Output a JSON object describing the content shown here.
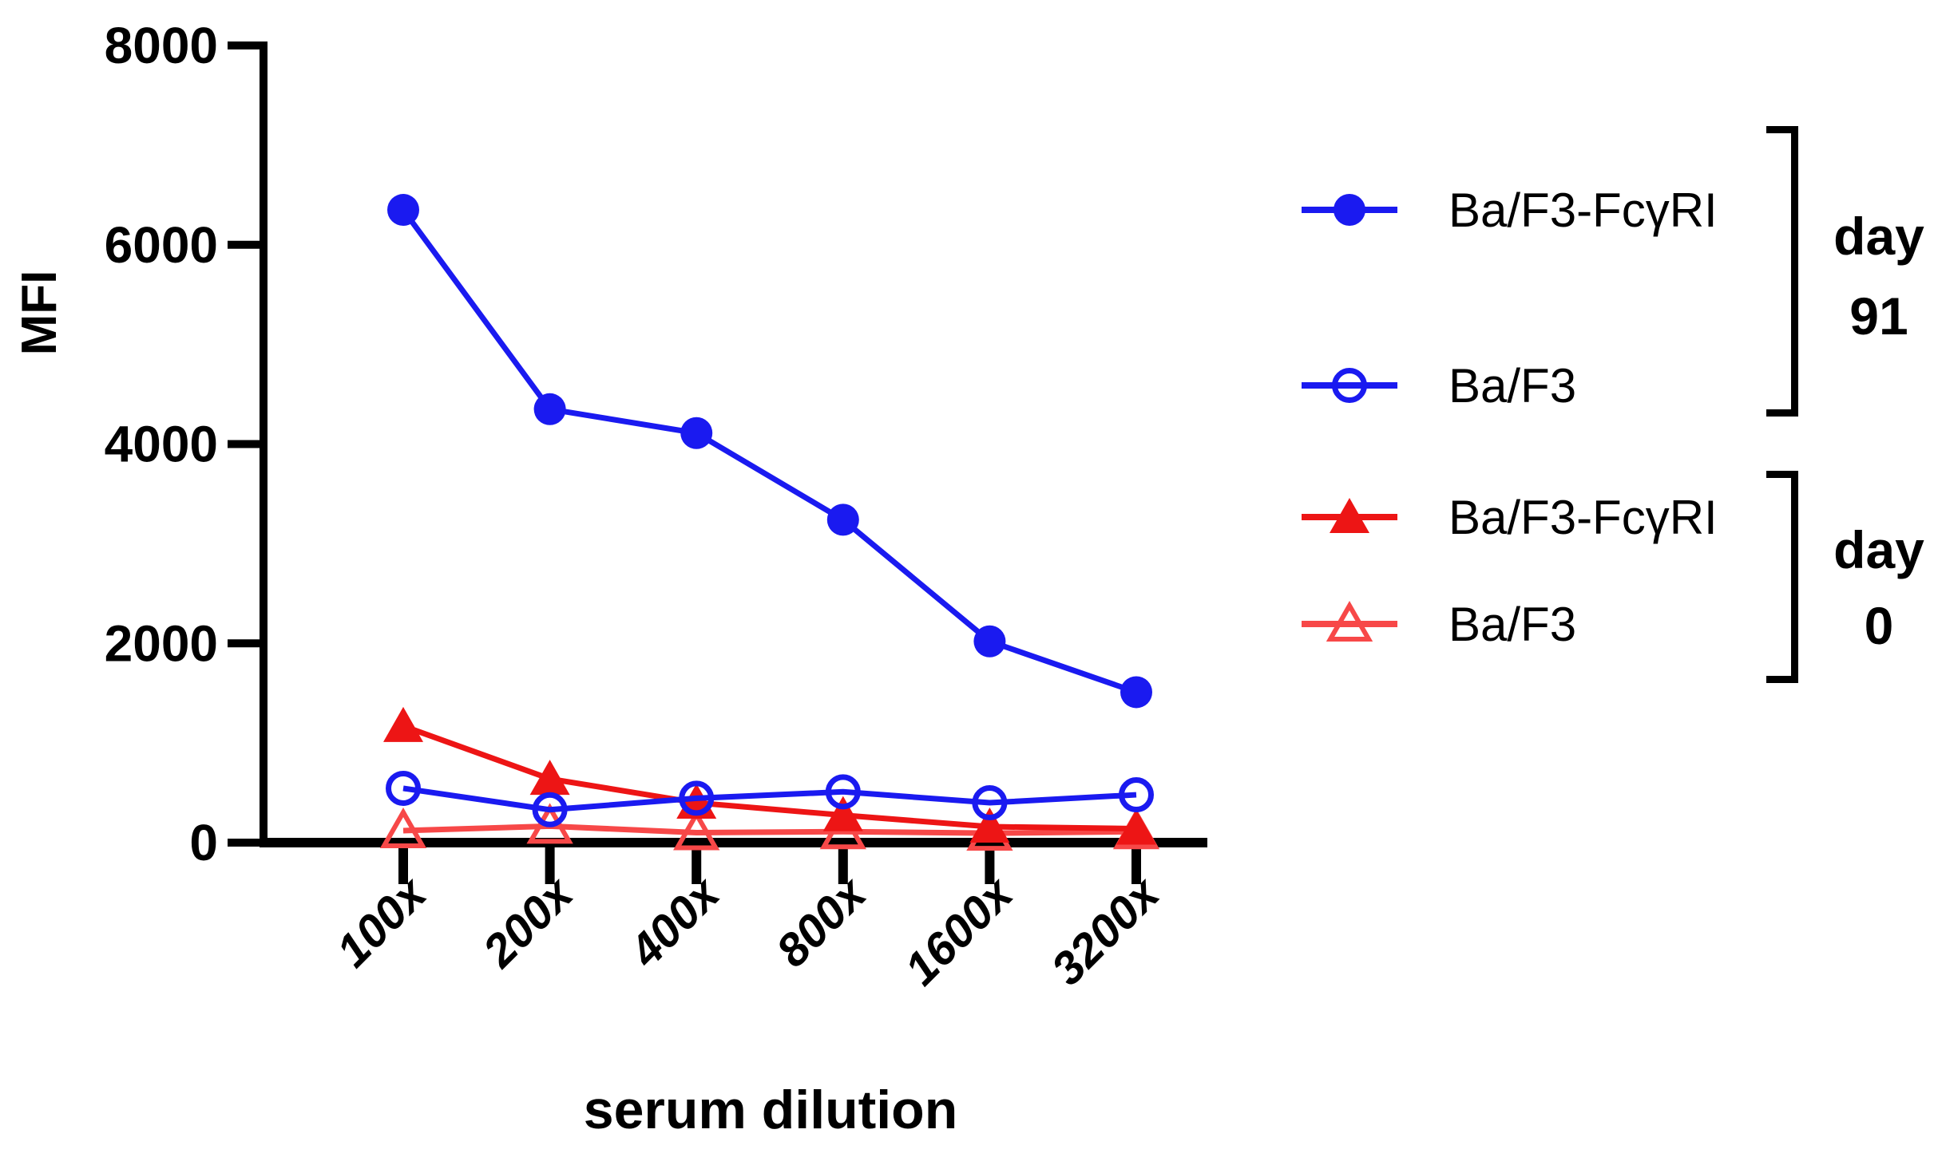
{
  "chart_data": {
    "type": "line",
    "title": "",
    "xlabel": "serum dilution",
    "ylabel": "MFI",
    "ylim": [
      0,
      8000
    ],
    "yticks": [
      0,
      2000,
      4000,
      6000,
      8000
    ],
    "categories": [
      "100x",
      "200x",
      "400x",
      "800x",
      "1600x",
      "3200x"
    ],
    "grid": false,
    "legend_position": "right",
    "axis_color": "#000000",
    "series": [
      {
        "name": "Ba/F3-FcγRI",
        "group": "day 91",
        "marker": "filled-circle",
        "color": "#1a1af0",
        "values": [
          6350,
          4350,
          4110,
          3240,
          2020,
          1510
        ]
      },
      {
        "name": "Ba/F3",
        "group": "day 91",
        "marker": "open-circle",
        "color": "#1a1af0",
        "values": [
          545,
          330,
          445,
          510,
          400,
          480
        ]
      },
      {
        "name": "Ba/F3-FcγRI",
        "group": "day 0",
        "marker": "filled-triangle",
        "color": "#ed1515",
        "values": [
          1170,
          640,
          400,
          275,
          160,
          140
        ]
      },
      {
        "name": "Ba/F3",
        "group": "day 0",
        "marker": "open-triangle",
        "color": "#f74848",
        "values": [
          120,
          165,
          100,
          110,
          95,
          110
        ]
      }
    ]
  },
  "legend": {
    "groups": [
      {
        "label_word": "day",
        "label_num": "91"
      },
      {
        "label_word": "day",
        "label_num": "0"
      }
    ]
  }
}
